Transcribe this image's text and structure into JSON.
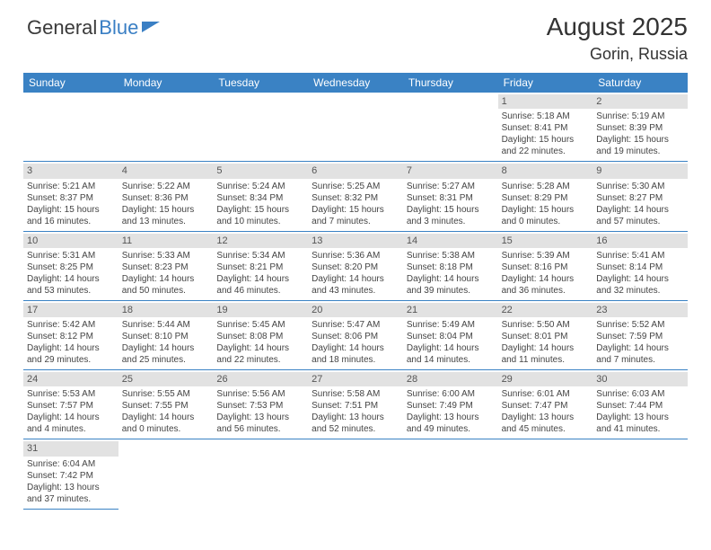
{
  "logo": {
    "part1": "General",
    "part2": "Blue"
  },
  "header": {
    "month_title": "August 2025",
    "location": "Gorin, Russia"
  },
  "dayheaders": [
    "Sunday",
    "Monday",
    "Tuesday",
    "Wednesday",
    "Thursday",
    "Friday",
    "Saturday"
  ],
  "colors": {
    "header_bar": "#3a82c4",
    "daynum_bg": "#e2e2e2",
    "text": "#444444"
  },
  "weeks": [
    [
      {
        "day": "",
        "sunrise": "",
        "sunset": "",
        "daylight1": "",
        "daylight2": ""
      },
      {
        "day": "",
        "sunrise": "",
        "sunset": "",
        "daylight1": "",
        "daylight2": ""
      },
      {
        "day": "",
        "sunrise": "",
        "sunset": "",
        "daylight1": "",
        "daylight2": ""
      },
      {
        "day": "",
        "sunrise": "",
        "sunset": "",
        "daylight1": "",
        "daylight2": ""
      },
      {
        "day": "",
        "sunrise": "",
        "sunset": "",
        "daylight1": "",
        "daylight2": ""
      },
      {
        "day": "1",
        "sunrise": "Sunrise: 5:18 AM",
        "sunset": "Sunset: 8:41 PM",
        "daylight1": "Daylight: 15 hours",
        "daylight2": "and 22 minutes."
      },
      {
        "day": "2",
        "sunrise": "Sunrise: 5:19 AM",
        "sunset": "Sunset: 8:39 PM",
        "daylight1": "Daylight: 15 hours",
        "daylight2": "and 19 minutes."
      }
    ],
    [
      {
        "day": "3",
        "sunrise": "Sunrise: 5:21 AM",
        "sunset": "Sunset: 8:37 PM",
        "daylight1": "Daylight: 15 hours",
        "daylight2": "and 16 minutes."
      },
      {
        "day": "4",
        "sunrise": "Sunrise: 5:22 AM",
        "sunset": "Sunset: 8:36 PM",
        "daylight1": "Daylight: 15 hours",
        "daylight2": "and 13 minutes."
      },
      {
        "day": "5",
        "sunrise": "Sunrise: 5:24 AM",
        "sunset": "Sunset: 8:34 PM",
        "daylight1": "Daylight: 15 hours",
        "daylight2": "and 10 minutes."
      },
      {
        "day": "6",
        "sunrise": "Sunrise: 5:25 AM",
        "sunset": "Sunset: 8:32 PM",
        "daylight1": "Daylight: 15 hours",
        "daylight2": "and 7 minutes."
      },
      {
        "day": "7",
        "sunrise": "Sunrise: 5:27 AM",
        "sunset": "Sunset: 8:31 PM",
        "daylight1": "Daylight: 15 hours",
        "daylight2": "and 3 minutes."
      },
      {
        "day": "8",
        "sunrise": "Sunrise: 5:28 AM",
        "sunset": "Sunset: 8:29 PM",
        "daylight1": "Daylight: 15 hours",
        "daylight2": "and 0 minutes."
      },
      {
        "day": "9",
        "sunrise": "Sunrise: 5:30 AM",
        "sunset": "Sunset: 8:27 PM",
        "daylight1": "Daylight: 14 hours",
        "daylight2": "and 57 minutes."
      }
    ],
    [
      {
        "day": "10",
        "sunrise": "Sunrise: 5:31 AM",
        "sunset": "Sunset: 8:25 PM",
        "daylight1": "Daylight: 14 hours",
        "daylight2": "and 53 minutes."
      },
      {
        "day": "11",
        "sunrise": "Sunrise: 5:33 AM",
        "sunset": "Sunset: 8:23 PM",
        "daylight1": "Daylight: 14 hours",
        "daylight2": "and 50 minutes."
      },
      {
        "day": "12",
        "sunrise": "Sunrise: 5:34 AM",
        "sunset": "Sunset: 8:21 PM",
        "daylight1": "Daylight: 14 hours",
        "daylight2": "and 46 minutes."
      },
      {
        "day": "13",
        "sunrise": "Sunrise: 5:36 AM",
        "sunset": "Sunset: 8:20 PM",
        "daylight1": "Daylight: 14 hours",
        "daylight2": "and 43 minutes."
      },
      {
        "day": "14",
        "sunrise": "Sunrise: 5:38 AM",
        "sunset": "Sunset: 8:18 PM",
        "daylight1": "Daylight: 14 hours",
        "daylight2": "and 39 minutes."
      },
      {
        "day": "15",
        "sunrise": "Sunrise: 5:39 AM",
        "sunset": "Sunset: 8:16 PM",
        "daylight1": "Daylight: 14 hours",
        "daylight2": "and 36 minutes."
      },
      {
        "day": "16",
        "sunrise": "Sunrise: 5:41 AM",
        "sunset": "Sunset: 8:14 PM",
        "daylight1": "Daylight: 14 hours",
        "daylight2": "and 32 minutes."
      }
    ],
    [
      {
        "day": "17",
        "sunrise": "Sunrise: 5:42 AM",
        "sunset": "Sunset: 8:12 PM",
        "daylight1": "Daylight: 14 hours",
        "daylight2": "and 29 minutes."
      },
      {
        "day": "18",
        "sunrise": "Sunrise: 5:44 AM",
        "sunset": "Sunset: 8:10 PM",
        "daylight1": "Daylight: 14 hours",
        "daylight2": "and 25 minutes."
      },
      {
        "day": "19",
        "sunrise": "Sunrise: 5:45 AM",
        "sunset": "Sunset: 8:08 PM",
        "daylight1": "Daylight: 14 hours",
        "daylight2": "and 22 minutes."
      },
      {
        "day": "20",
        "sunrise": "Sunrise: 5:47 AM",
        "sunset": "Sunset: 8:06 PM",
        "daylight1": "Daylight: 14 hours",
        "daylight2": "and 18 minutes."
      },
      {
        "day": "21",
        "sunrise": "Sunrise: 5:49 AM",
        "sunset": "Sunset: 8:04 PM",
        "daylight1": "Daylight: 14 hours",
        "daylight2": "and 14 minutes."
      },
      {
        "day": "22",
        "sunrise": "Sunrise: 5:50 AM",
        "sunset": "Sunset: 8:01 PM",
        "daylight1": "Daylight: 14 hours",
        "daylight2": "and 11 minutes."
      },
      {
        "day": "23",
        "sunrise": "Sunrise: 5:52 AM",
        "sunset": "Sunset: 7:59 PM",
        "daylight1": "Daylight: 14 hours",
        "daylight2": "and 7 minutes."
      }
    ],
    [
      {
        "day": "24",
        "sunrise": "Sunrise: 5:53 AM",
        "sunset": "Sunset: 7:57 PM",
        "daylight1": "Daylight: 14 hours",
        "daylight2": "and 4 minutes."
      },
      {
        "day": "25",
        "sunrise": "Sunrise: 5:55 AM",
        "sunset": "Sunset: 7:55 PM",
        "daylight1": "Daylight: 14 hours",
        "daylight2": "and 0 minutes."
      },
      {
        "day": "26",
        "sunrise": "Sunrise: 5:56 AM",
        "sunset": "Sunset: 7:53 PM",
        "daylight1": "Daylight: 13 hours",
        "daylight2": "and 56 minutes."
      },
      {
        "day": "27",
        "sunrise": "Sunrise: 5:58 AM",
        "sunset": "Sunset: 7:51 PM",
        "daylight1": "Daylight: 13 hours",
        "daylight2": "and 52 minutes."
      },
      {
        "day": "28",
        "sunrise": "Sunrise: 6:00 AM",
        "sunset": "Sunset: 7:49 PM",
        "daylight1": "Daylight: 13 hours",
        "daylight2": "and 49 minutes."
      },
      {
        "day": "29",
        "sunrise": "Sunrise: 6:01 AM",
        "sunset": "Sunset: 7:47 PM",
        "daylight1": "Daylight: 13 hours",
        "daylight2": "and 45 minutes."
      },
      {
        "day": "30",
        "sunrise": "Sunrise: 6:03 AM",
        "sunset": "Sunset: 7:44 PM",
        "daylight1": "Daylight: 13 hours",
        "daylight2": "and 41 minutes."
      }
    ],
    [
      {
        "day": "31",
        "sunrise": "Sunrise: 6:04 AM",
        "sunset": "Sunset: 7:42 PM",
        "daylight1": "Daylight: 13 hours",
        "daylight2": "and 37 minutes."
      }
    ]
  ]
}
